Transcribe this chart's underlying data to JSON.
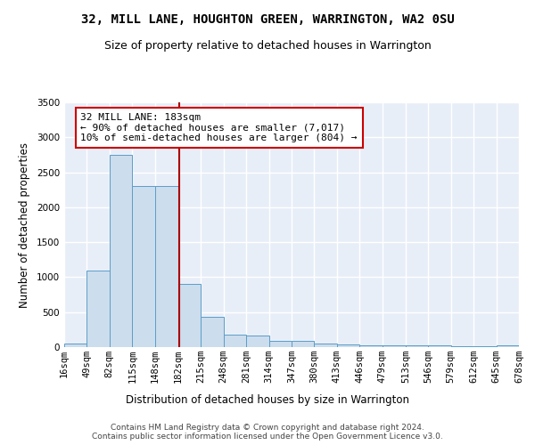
{
  "title": "32, MILL LANE, HOUGHTON GREEN, WARRINGTON, WA2 0SU",
  "subtitle": "Size of property relative to detached houses in Warrington",
  "xlabel": "Distribution of detached houses by size in Warrington",
  "ylabel": "Number of detached properties",
  "bin_edges": [
    16,
    49,
    82,
    115,
    148,
    182,
    215,
    248,
    281,
    314,
    347,
    380,
    413,
    446,
    479,
    513,
    546,
    579,
    612,
    645,
    678
  ],
  "bar_heights": [
    50,
    1100,
    2750,
    2300,
    2300,
    900,
    430,
    175,
    165,
    90,
    85,
    50,
    40,
    30,
    28,
    25,
    20,
    10,
    8,
    28
  ],
  "bar_color": "#ccdded",
  "bar_edge_color": "#5b9dc8",
  "property_size": 183,
  "vline_color": "#aa0000",
  "annotation_text": "32 MILL LANE: 183sqm\n← 90% of detached houses are smaller (7,017)\n10% of semi-detached houses are larger (804) →",
  "annotation_box_color": "white",
  "annotation_box_edge": "#cc0000",
  "ylim": [
    0,
    3500
  ],
  "yticks": [
    0,
    500,
    1000,
    1500,
    2000,
    2500,
    3000,
    3500
  ],
  "background_color": "#e8eef8",
  "grid_color": "white",
  "footer_line1": "Contains HM Land Registry data © Crown copyright and database right 2024.",
  "footer_line2": "Contains public sector information licensed under the Open Government Licence v3.0.",
  "title_fontsize": 10,
  "subtitle_fontsize": 9,
  "axis_label_fontsize": 8.5,
  "tick_fontsize": 7.5,
  "annotation_fontsize": 8
}
